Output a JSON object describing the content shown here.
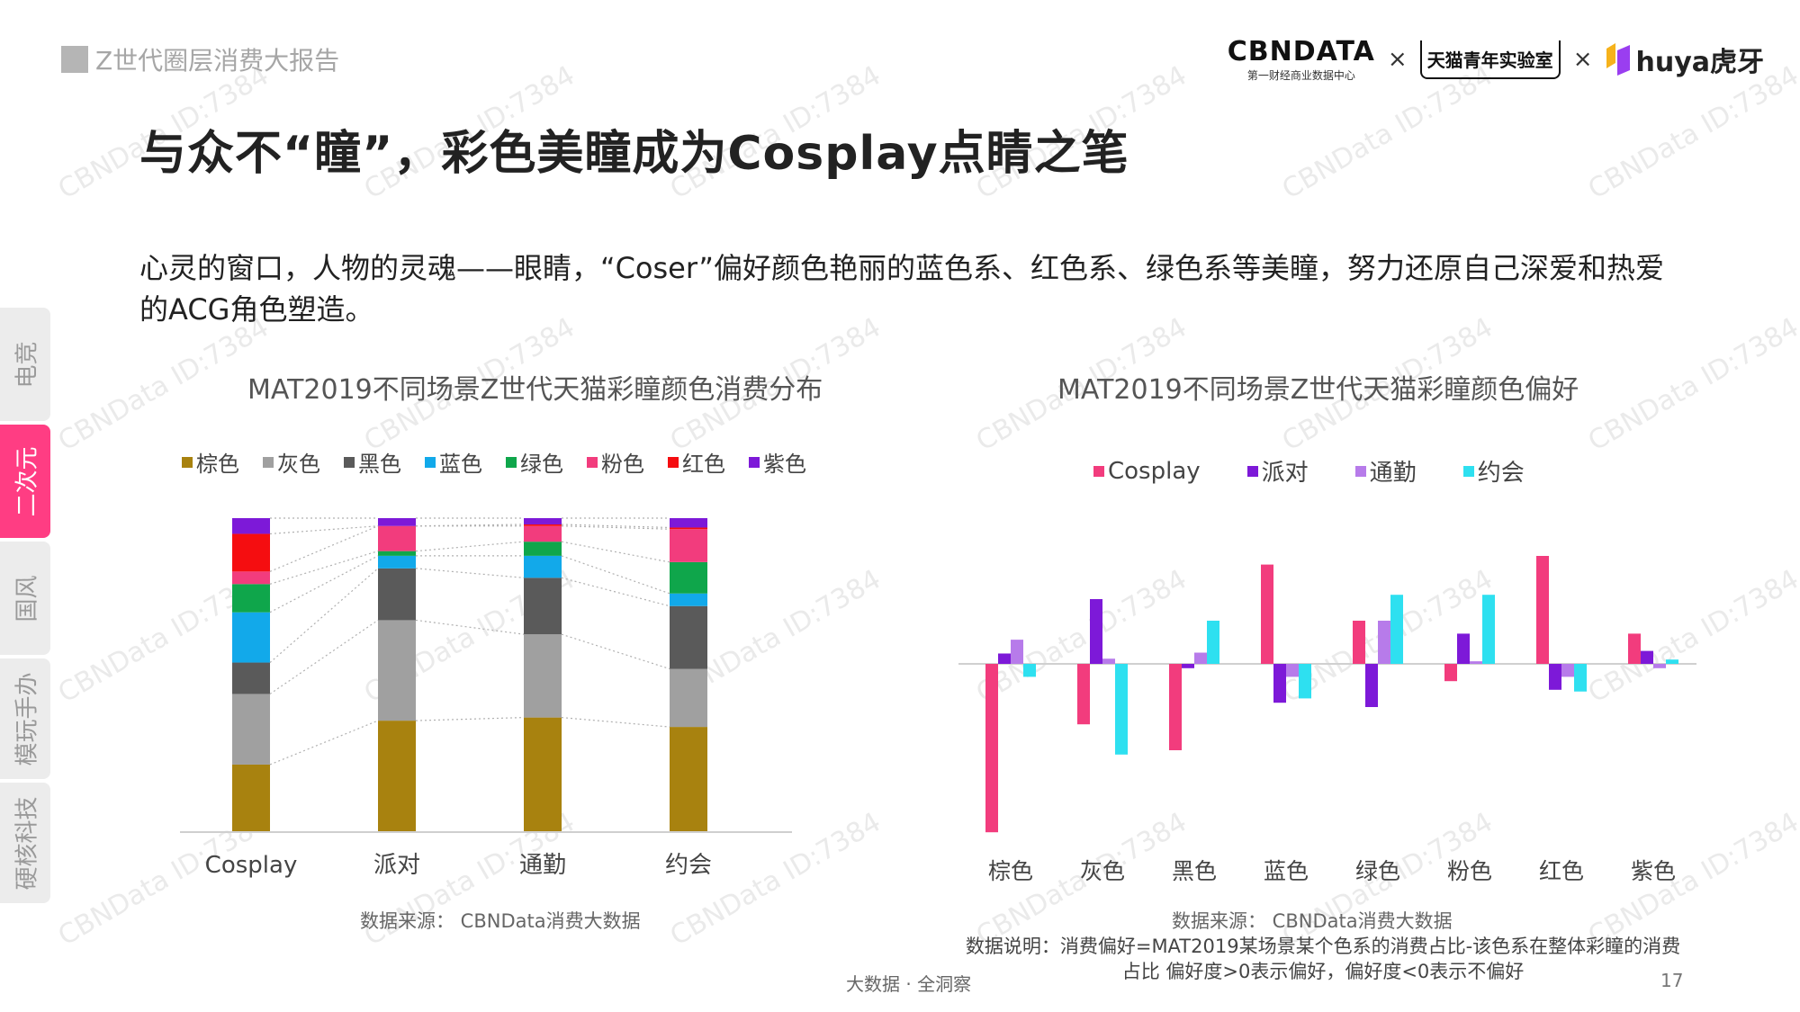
{
  "header": {
    "report_tag": "Z世代圈层消费大报告",
    "title": "与众不“瞳”，彩色美瞳成为Cosplay点睛之笔",
    "logo_cbn": "CBNDATA",
    "logo_cbn_sub": "第一财经商业数据中心",
    "times": "×",
    "logo_tmall": "天猫青年实验室",
    "logo_huya": "huya虎牙"
  },
  "intro": "心灵的窗口，人物的灵魂——眼睛，“Coser”偏好颜色艳丽的蓝色系、红色系、绿色系等美瞳，努力还原自己深爱和热爱的ACG角色塑造。",
  "side_tabs": [
    {
      "label": "电竞",
      "active": false
    },
    {
      "label": "二次元",
      "active": true
    },
    {
      "label": "国风",
      "active": false
    },
    {
      "label": "模玩手办",
      "active": false
    },
    {
      "label": "硬核科技",
      "active": false
    }
  ],
  "colors": {
    "棕色": "#a8820f",
    "灰色": "#a0a0a0",
    "黑色": "#5a5a5a",
    "蓝色": "#12a9ea",
    "绿色": "#0fa64b",
    "粉色": "#f23c7d",
    "红色": "#f50d10",
    "紫色": "#7d19d8",
    "Cosplay": "#f23c7d",
    "派对": "#7d19d8",
    "通勤": "#b77bea",
    "约会": "#2ee0f0"
  },
  "chart_data": [
    {
      "type": "bar",
      "stacked": true,
      "normalized": true,
      "title": "MAT2019不同场景Z世代天猫彩瞳颜色消费分布",
      "categories": [
        "Cosplay",
        "派对",
        "通勤",
        "约会"
      ],
      "series": [
        {
          "name": "棕色",
          "values": [
            21.5,
            35.5,
            36.5,
            33.5
          ]
        },
        {
          "name": "灰色",
          "values": [
            22.5,
            32.0,
            26.5,
            18.5
          ]
        },
        {
          "name": "黑色",
          "values": [
            10.0,
            16.5,
            18.0,
            20.0
          ]
        },
        {
          "name": "蓝色",
          "values": [
            16.0,
            4.0,
            7.0,
            4.0
          ]
        },
        {
          "name": "绿色",
          "values": [
            9.0,
            1.5,
            4.5,
            10.0
          ]
        },
        {
          "name": "粉色",
          "values": [
            4.0,
            8.0,
            5.0,
            10.5
          ]
        },
        {
          "name": "红色",
          "values": [
            12.0,
            0.0,
            0.5,
            0.5
          ]
        },
        {
          "name": "紫色",
          "values": [
            5.0,
            2.5,
            2.0,
            3.0
          ]
        }
      ],
      "ylim": [
        0,
        100
      ],
      "legend": "top",
      "source": "数据来源： CBNData消费大数据"
    },
    {
      "type": "bar",
      "grouped": true,
      "title": "MAT2019不同场景Z世代天猫彩瞳颜色偏好",
      "categories": [
        "棕色",
        "灰色",
        "黑色",
        "蓝色",
        "绿色",
        "粉色",
        "红色",
        "紫色"
      ],
      "series": [
        {
          "name": "Cosplay",
          "values": [
            -19.5,
            -7.0,
            -10.0,
            11.5,
            5.0,
            -2.0,
            12.5,
            3.5
          ]
        },
        {
          "name": "派对",
          "values": [
            1.2,
            7.5,
            -0.5,
            -4.5,
            -5.0,
            3.5,
            -3.0,
            1.5
          ]
        },
        {
          "name": "通勤",
          "values": [
            2.8,
            0.6,
            1.3,
            -1.5,
            5.0,
            0.3,
            -1.5,
            -0.5
          ]
        },
        {
          "name": "约会",
          "values": [
            -1.5,
            -10.5,
            5.0,
            -4.0,
            8.0,
            8.0,
            -3.2,
            0.5
          ]
        }
      ],
      "baseline": 0,
      "legend": "top",
      "source": "数据来源： CBNData消费大数据",
      "note_line1": "数据说明：消费偏好=MAT2019某场景某个色系的消费占比-该色系在整体彩瞳的消费",
      "note_line2": "占比 偏好度>0表示偏好，偏好度<0表示不偏好"
    }
  ],
  "footer": {
    "left": "大数据 · 全洞察",
    "page": "17"
  },
  "watermark": "CBNData ID:7384"
}
